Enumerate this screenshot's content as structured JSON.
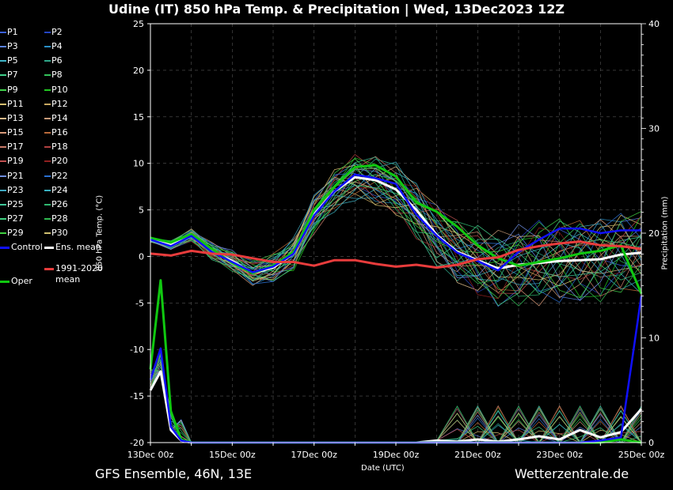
{
  "title": "Udine  (IT)  850 hPa Temp. & Precipitation | Wed, 13Dec2023 12Z",
  "footer_left": "GFS Ensemble, 46N, 13E",
  "footer_right": "Wetterzentrale.de",
  "chart_data": {
    "type": "line",
    "xlabel": "Date (UTC)",
    "ylabel": "850 hPa Temp. (°C)",
    "y2label": "Precipitation (mm)",
    "ylim": [
      -20,
      25
    ],
    "y2lim": [
      0,
      40
    ],
    "xlim": [
      0,
      12
    ],
    "x_tick_positions": [
      0,
      2,
      4,
      6,
      8,
      10,
      12
    ],
    "x_tick_labels": [
      "13Dec 00z",
      "15Dec 00z",
      "17Dec 00z",
      "19Dec 00z",
      "21Dec 00z",
      "23Dec 00z",
      "25Dec 00z"
    ],
    "y_ticks": [
      -20,
      -15,
      -10,
      -5,
      0,
      5,
      10,
      15,
      20,
      25
    ],
    "y2_ticks": [
      0,
      10,
      20,
      30,
      40
    ],
    "grid": true,
    "legend_placement": "left outside",
    "legend": [
      {
        "label": "P1",
        "color": "#3a5fd9"
      },
      {
        "label": "P2",
        "color": "#2444c2"
      },
      {
        "label": "P3",
        "color": "#5a82e0"
      },
      {
        "label": "P4",
        "color": "#2a8fc6"
      },
      {
        "label": "P5",
        "color": "#3fb6c9"
      },
      {
        "label": "P6",
        "color": "#2fa88a"
      },
      {
        "label": "P7",
        "color": "#3fcf8a"
      },
      {
        "label": "P8",
        "color": "#33c25a"
      },
      {
        "label": "P9",
        "color": "#3fd04a"
      },
      {
        "label": "P10",
        "color": "#22c822"
      },
      {
        "label": "P11",
        "color": "#d8c070"
      },
      {
        "label": "P12",
        "color": "#c8a860"
      },
      {
        "label": "P13",
        "color": "#d8b888"
      },
      {
        "label": "P14",
        "color": "#c89a78"
      },
      {
        "label": "P15",
        "color": "#d89a7a"
      },
      {
        "label": "P16",
        "color": "#b86a3a"
      },
      {
        "label": "P17",
        "color": "#c87a68"
      },
      {
        "label": "P18",
        "color": "#b04040"
      },
      {
        "label": "P19",
        "color": "#c05050"
      },
      {
        "label": "P20",
        "color": "#902020"
      },
      {
        "label": "P21",
        "color": "#6e8ee0"
      },
      {
        "label": "P22",
        "color": "#2a6fd0"
      },
      {
        "label": "P23",
        "color": "#3fa8c0"
      },
      {
        "label": "P24",
        "color": "#38b0c0"
      },
      {
        "label": "P25",
        "color": "#3fc89a"
      },
      {
        "label": "P26",
        "color": "#2fb870"
      },
      {
        "label": "P27",
        "color": "#3fd080"
      },
      {
        "label": "P28",
        "color": "#30b850"
      },
      {
        "label": "P29",
        "color": "#3fd040"
      },
      {
        "label": "P30",
        "color": "#d0c070"
      },
      {
        "label": "Control",
        "color": "#1010ff"
      },
      {
        "label": "Ens. mean",
        "color": "#ffffff"
      },
      {
        "label": "1991-2020 mean",
        "color": "#e83c3c"
      },
      {
        "label": "Oper",
        "color": "#10c810"
      }
    ],
    "series": [
      {
        "name": "Ens. mean",
        "color": "#ffffff",
        "x": [
          0,
          0.5,
          1,
          1.5,
          2,
          2.5,
          3,
          3.5,
          4,
          4.5,
          5,
          5.5,
          6,
          6.5,
          7,
          7.5,
          8,
          8.5,
          9,
          9.5,
          10,
          10.5,
          11,
          11.5,
          12
        ],
        "y": [
          1.8,
          1.2,
          2.3,
          0.6,
          -0.5,
          -1.8,
          -1.2,
          0.3,
          4.5,
          7.0,
          8.5,
          8.2,
          7.2,
          5.0,
          2.3,
          0.5,
          -0.4,
          -1.3,
          -0.9,
          -0.7,
          -0.5,
          -0.4,
          -0.3,
          0.2,
          0.4
        ]
      },
      {
        "name": "Oper",
        "color": "#10c810",
        "x": [
          0,
          0.5,
          1,
          1.5,
          2,
          2.5,
          3,
          3.5,
          4,
          4.5,
          5,
          5.5,
          6,
          6.5,
          7,
          7.5,
          8,
          8.5,
          9,
          9.5,
          10,
          10.5,
          11,
          11.5,
          12
        ],
        "y": [
          2.0,
          1.5,
          2.4,
          0.8,
          -0.7,
          -1.8,
          -1.0,
          0.5,
          5.0,
          7.5,
          9.6,
          9.8,
          8.6,
          5.8,
          4.8,
          3.2,
          1.2,
          -0.2,
          -1.0,
          -0.6,
          -0.2,
          0.3,
          0.6,
          1.2,
          -4.0
        ]
      },
      {
        "name": "Control",
        "color": "#1010ff",
        "x": [
          0,
          0.5,
          1,
          1.5,
          2,
          2.5,
          3,
          3.5,
          4,
          4.5,
          5,
          5.5,
          6,
          6.5,
          7,
          7.5,
          8,
          8.5,
          9,
          9.5,
          10,
          10.5,
          11,
          11.5,
          12
        ],
        "y": [
          1.8,
          1.1,
          2.2,
          0.5,
          -0.6,
          -1.7,
          -1.1,
          0.3,
          4.4,
          7.0,
          8.8,
          8.4,
          7.8,
          4.5,
          2.2,
          0.4,
          -0.5,
          -1.5,
          0.5,
          1.8,
          3.0,
          3.0,
          2.5,
          2.8,
          2.8
        ]
      },
      {
        "name": "1991-2020 mean",
        "color": "#e83c3c",
        "x": [
          0,
          0.5,
          1,
          1.5,
          2,
          2.5,
          3,
          3.5,
          4,
          4.5,
          5,
          5.5,
          6,
          6.5,
          7,
          7.5,
          8,
          8.5,
          9,
          9.5,
          10,
          10.5,
          11,
          11.5,
          12
        ],
        "y": [
          0.3,
          0.1,
          0.6,
          0.3,
          0.2,
          -0.2,
          -0.6,
          -0.6,
          -1.0,
          -0.4,
          -0.4,
          -0.8,
          -1.1,
          -0.9,
          -1.2,
          -0.9,
          -0.3,
          -0.1,
          0.7,
          1.1,
          1.4,
          1.6,
          1.2,
          1.1,
          0.8
        ]
      }
    ],
    "precip_series": [
      {
        "name": "Ens. mean",
        "color": "#ffffff",
        "x": [
          0,
          0.25,
          0.5,
          0.75,
          1,
          1.5,
          2,
          2.5,
          3,
          3.5,
          4,
          4.5,
          5,
          5.5,
          6,
          6.5,
          7,
          7.5,
          8,
          8.5,
          9,
          9.5,
          10,
          10.5,
          11,
          11.5,
          12
        ],
        "y": [
          5.0,
          6.8,
          1.2,
          0.2,
          0.0,
          0.0,
          0.0,
          0.0,
          0.0,
          0.0,
          0.0,
          0.0,
          0.0,
          0.0,
          0.0,
          0.0,
          0.2,
          0.1,
          0.3,
          0.1,
          0.3,
          0.6,
          0.3,
          1.2,
          0.5,
          1.0,
          3.2
        ]
      },
      {
        "name": "Oper",
        "color": "#10c810",
        "x": [
          0,
          0.25,
          0.5,
          0.75,
          1,
          1.5,
          2,
          2.5,
          3,
          3.5,
          4,
          4.5,
          5,
          5.5,
          6,
          6.5,
          7,
          7.5,
          8,
          8.5,
          9,
          9.5,
          10,
          10.5,
          11,
          11.5,
          12
        ],
        "y": [
          7.0,
          15.5,
          3.0,
          0.3,
          0.0,
          0.0,
          0.0,
          0.0,
          0.0,
          0.0,
          0.0,
          0.0,
          0.0,
          0.0,
          0.0,
          0.0,
          0.0,
          0.0,
          0.0,
          0.0,
          0.0,
          0.0,
          0.0,
          0.0,
          0.0,
          0.3,
          0.0
        ]
      },
      {
        "name": "Control",
        "color": "#1010ff",
        "x": [
          0,
          0.25,
          0.5,
          0.75,
          1,
          1.5,
          2,
          2.5,
          3,
          3.5,
          4,
          4.5,
          5,
          5.5,
          6,
          6.5,
          7,
          7.5,
          8,
          8.5,
          9,
          9.5,
          10,
          10.5,
          11,
          11.5,
          12
        ],
        "y": [
          6.0,
          9.0,
          1.5,
          0.2,
          0.0,
          0.0,
          0.0,
          0.0,
          0.0,
          0.0,
          0.0,
          0.0,
          0.0,
          0.0,
          0.0,
          0.0,
          0.0,
          0.0,
          0.0,
          0.0,
          0.0,
          0.0,
          0.0,
          0.0,
          0.2,
          0.5,
          14.0
        ]
      }
    ]
  }
}
